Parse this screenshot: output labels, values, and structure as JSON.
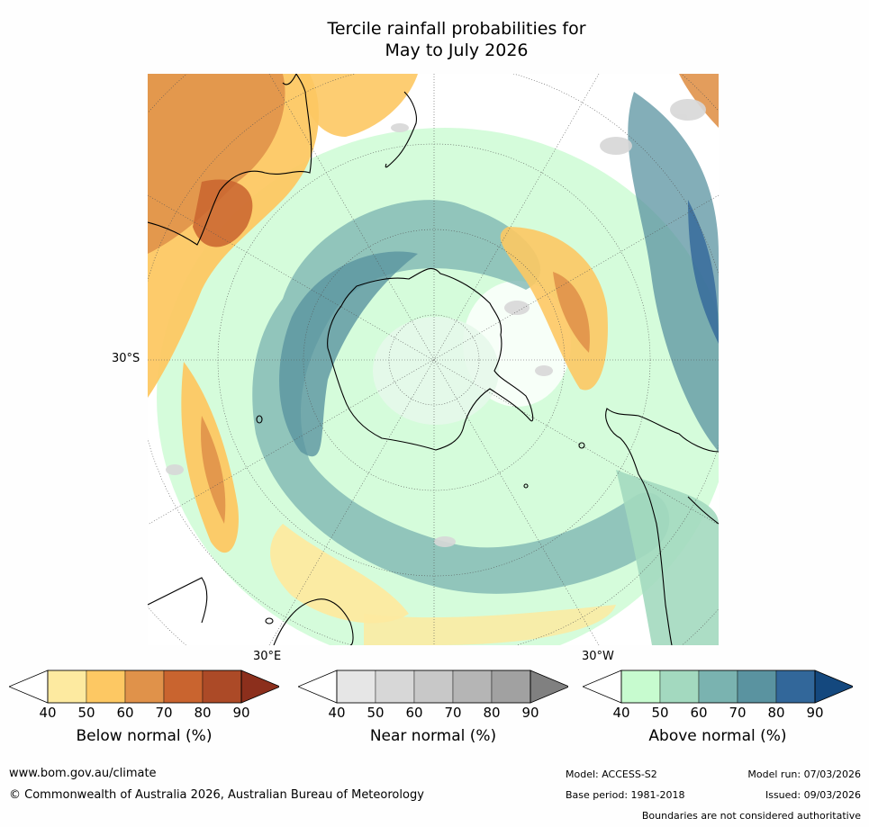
{
  "title": {
    "line1": "Tercile rainfall probabilities for",
    "line2": "May to July 2026"
  },
  "map": {
    "latitude_label": "30°S",
    "longitude_labels": {
      "east": "30°E",
      "west": "30°W"
    }
  },
  "colorbars": [
    {
      "label": "Below normal (%)",
      "ticks": [
        "40",
        "50",
        "60",
        "70",
        "80",
        "90"
      ],
      "colors": [
        "#ffffff",
        "#fdeaa0",
        "#fdc863",
        "#e0924a",
        "#c9642f",
        "#ac4a27",
        "#8c2f1c"
      ]
    },
    {
      "label": "Near normal (%)",
      "ticks": [
        "40",
        "50",
        "60",
        "70",
        "80",
        "90"
      ],
      "colors": [
        "#ffffff",
        "#e6e6e6",
        "#d7d7d7",
        "#c8c8c8",
        "#b5b5b5",
        "#a1a1a1",
        "#808080"
      ]
    },
    {
      "label": "Above normal (%)",
      "ticks": [
        "40",
        "50",
        "60",
        "70",
        "80",
        "90"
      ],
      "colors": [
        "#ffffff",
        "#c7fbcf",
        "#a3d9bf",
        "#7ab3b0",
        "#5a93a0",
        "#32679a",
        "#14487e"
      ]
    }
  ],
  "footer": {
    "website": "www.bom.gov.au/climate",
    "copyright": "© Commonwealth of Australia 2026, Australian Bureau of Meteorology",
    "model": "Model: ACCESS-S2",
    "base_period": "Base period: 1981-2018",
    "model_run": "Model run: 07/03/2026",
    "issued": "Issued: 09/03/2026",
    "disclaimer": "Boundaries are not considered authoritative"
  }
}
